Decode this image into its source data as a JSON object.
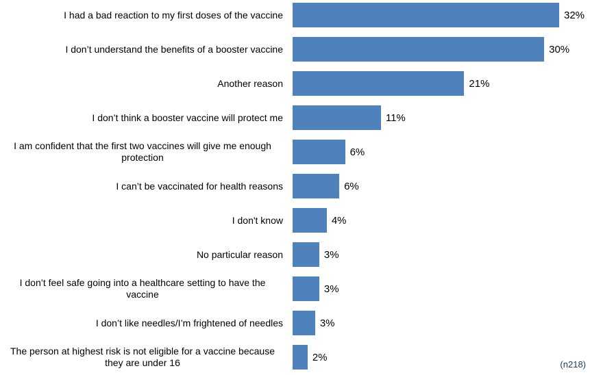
{
  "chart_data": {
    "type": "bar",
    "orientation": "horizontal",
    "categories": [
      "I had a bad reaction to my first doses of the vaccine",
      "I don’t understand the benefits of a booster vaccine",
      "Another reason",
      "I don’t think a booster vaccine will protect me",
      "I am confident that the first two vaccines will give me enough protection",
      "I can’t be vaccinated for health reasons",
      "I don't know",
      "No particular reason",
      "I don’t feel safe going into a healthcare setting to have the vaccine",
      "I don’t like needles/I’m frightened of needles",
      "The person at highest risk is not eligible for a vaccine because they are under 16"
    ],
    "values": [
      32,
      30.2,
      20.6,
      10.6,
      6.3,
      5.6,
      4.1,
      3.2,
      3.2,
      2.7,
      1.8
    ],
    "value_labels": [
      "32%",
      "30%",
      "21%",
      "11%",
      "6%",
      "6%",
      "4%",
      "3%",
      "3%",
      "3%",
      "2%"
    ],
    "color": "#4f81bd",
    "annotation": "(n218)"
  }
}
